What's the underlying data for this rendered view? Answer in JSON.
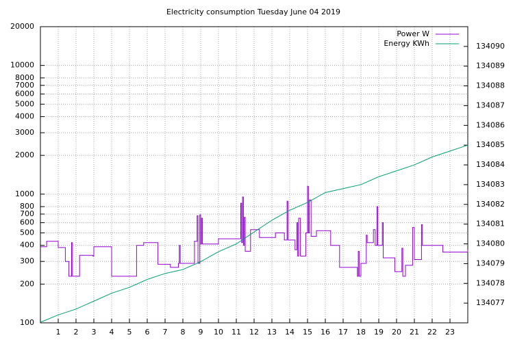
{
  "chart_data": {
    "type": "line",
    "title": "Electricity consumption Tuesday June 04 2019",
    "line_style": "steps",
    "xlim": [
      0,
      24
    ],
    "xticks": [
      1,
      2,
      3,
      4,
      5,
      6,
      7,
      8,
      9,
      10,
      11,
      12,
      13,
      14,
      15,
      16,
      17,
      18,
      19,
      20,
      21,
      22,
      23
    ],
    "ylim": [
      100,
      20000
    ],
    "log_y": true,
    "yticks": [
      100,
      200,
      300,
      400,
      500,
      600,
      700,
      800,
      1000,
      2000,
      3000,
      4000,
      5000,
      6000,
      7000,
      8000,
      10000,
      20000
    ],
    "y2lim": [
      134076,
      134091
    ],
    "y2ticks": [
      134077,
      134078,
      134079,
      134080,
      134081,
      134082,
      134083,
      134084,
      134085,
      134086,
      134087,
      134088,
      134089,
      134090
    ],
    "grid": true,
    "legend": "top-right",
    "series": [
      {
        "name": "Power W",
        "color": "#9400d3",
        "step": true,
        "x": [
          0,
          0.35,
          1.0,
          1.4,
          1.6,
          1.75,
          1.8,
          2.2,
          2.95,
          3.0,
          4.0,
          5.4,
          5.8,
          6.6,
          7.3,
          7.75,
          7.8,
          7.85,
          8.6,
          8.65,
          8.8,
          8.85,
          8.95,
          9.0,
          9.05,
          9.1,
          10.0,
          11.2,
          11.25,
          11.3,
          11.35,
          11.4,
          11.45,
          11.5,
          11.8,
          12.3,
          13.2,
          13.7,
          13.85,
          13.9,
          14.3,
          14.4,
          14.45,
          14.5,
          14.6,
          14.9,
          15.0,
          15.05,
          15.1,
          15.2,
          15.5,
          16.3,
          16.8,
          17.8,
          17.85,
          17.9,
          18.0,
          18.3,
          18.35,
          18.7,
          18.8,
          18.9,
          18.95,
          19.2,
          19.25,
          19.9,
          20.3,
          20.35,
          20.5,
          20.9,
          21.0,
          21.4,
          21.45,
          22.6,
          24
        ],
        "values": [
          390,
          430,
          385,
          300,
          230,
          420,
          230,
          335,
          330,
          390,
          230,
          400,
          420,
          285,
          270,
          290,
          400,
          290,
          290,
          430,
          680,
          290,
          690,
          410,
          650,
          410,
          450,
          450,
          850,
          420,
          950,
          400,
          660,
          360,
          530,
          460,
          500,
          440,
          880,
          440,
          370,
          600,
          330,
          650,
          330,
          500,
          1150,
          500,
          900,
          470,
          520,
          400,
          270,
          230,
          360,
          230,
          290,
          480,
          420,
          530,
          400,
          800,
          400,
          600,
          320,
          250,
          380,
          230,
          280,
          550,
          310,
          580,
          400,
          355,
          370
        ]
      },
      {
        "name": "Energy KWh",
        "color": "#009e73",
        "axis": "y2",
        "x": [
          0,
          1,
          2,
          3,
          4,
          5,
          6,
          7,
          8,
          9,
          10,
          11,
          12,
          13,
          14,
          15,
          16,
          17,
          18,
          19,
          20,
          21,
          22,
          23,
          24
        ],
        "values": [
          134076.03,
          134076.4,
          134076.7,
          134077.1,
          134077.5,
          134077.8,
          134078.2,
          134078.5,
          134078.7,
          134079.1,
          134079.6,
          134080.0,
          134080.6,
          134081.2,
          134081.7,
          134082.1,
          134082.6,
          134082.8,
          134083.0,
          134083.4,
          134083.7,
          134084.0,
          134084.4,
          134084.7,
          134085.0
        ]
      }
    ]
  }
}
